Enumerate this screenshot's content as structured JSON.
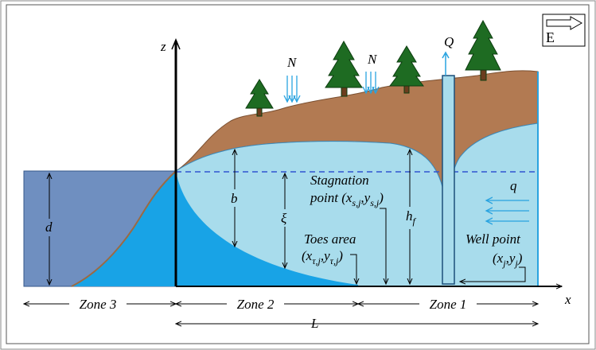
{
  "compass": {
    "label": "E"
  },
  "axes": {
    "z": "z",
    "x": "x"
  },
  "recharge": [
    "N",
    "N"
  ],
  "well": {
    "discharge": "Q"
  },
  "inflow": "q",
  "dimensions": {
    "d": "d",
    "b": "b",
    "xi": "ξ",
    "hf": {
      "base": "h",
      "sub": "f"
    },
    "L": "L"
  },
  "points": [
    {
      "title": "Stagnation",
      "coords": [
        {
          "text": "point (x"
        },
        {
          "text": "s,j",
          "sub": true
        },
        {
          "text": ",y"
        },
        {
          "text": "s,j",
          "sub": true
        },
        {
          "text": ")"
        }
      ]
    },
    {
      "title": "Toes area",
      "coords": [
        {
          "text": "(x"
        },
        {
          "text": "τ,j",
          "sub": true
        },
        {
          "text": ",y"
        },
        {
          "text": "τ,j",
          "sub": true
        },
        {
          "text": ")"
        }
      ]
    },
    {
      "title": "Well point",
      "coords": [
        {
          "text": "(x"
        },
        {
          "text": "j",
          "sub": true
        },
        {
          "text": ",y"
        },
        {
          "text": "j",
          "sub": true
        },
        {
          "text": ")"
        }
      ]
    }
  ],
  "zones": [
    "Zone 3",
    "Zone 2",
    "Zone 1"
  ]
}
